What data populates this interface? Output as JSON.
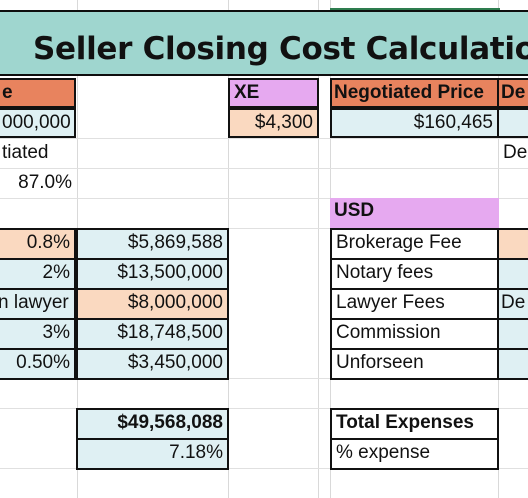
{
  "header": {
    "title": "Seller Closing Cost Calculation"
  },
  "left_table": {
    "head_fragment": "e",
    "price_fragment": "000,000",
    "negotiated_fragment": "tiated",
    "negotiated_pct": "87.0%",
    "rates": [
      {
        "rate": "0.8%",
        "amount": "$5,869,588"
      },
      {
        "rate": "2%",
        "amount": "$13,500,000"
      },
      {
        "rate": "n lawyer",
        "amount": "$8,000,000"
      },
      {
        "rate": "3%",
        "amount": "$18,748,500"
      },
      {
        "rate": "0.50%",
        "amount": "$3,450,000"
      }
    ],
    "total_amount": "$49,568,088",
    "total_pct": "7.18%"
  },
  "xe": {
    "label": "XE",
    "value": "$4,300"
  },
  "right_table": {
    "negotiated_price_label": "Negotiated Price",
    "negotiated_price_value": "$160,465",
    "next_col_fragment": "De",
    "row3_fragment": "De",
    "usd_label": "USD",
    "expenses": [
      {
        "label": "Brokerage Fee"
      },
      {
        "label": "Notary fees"
      },
      {
        "label": "Lawyer Fees",
        "side": "De"
      },
      {
        "label": "Commission"
      },
      {
        "label": "Unforseen"
      }
    ],
    "total_label": "Total Expenses",
    "pct_label": "% expense"
  },
  "colors": {
    "title_band": "#9fd6cf",
    "header_orange": "#e8835e",
    "peach": "#fad9c0",
    "light_blue": "#dff0f3",
    "lavender": "#e6a9f0"
  }
}
